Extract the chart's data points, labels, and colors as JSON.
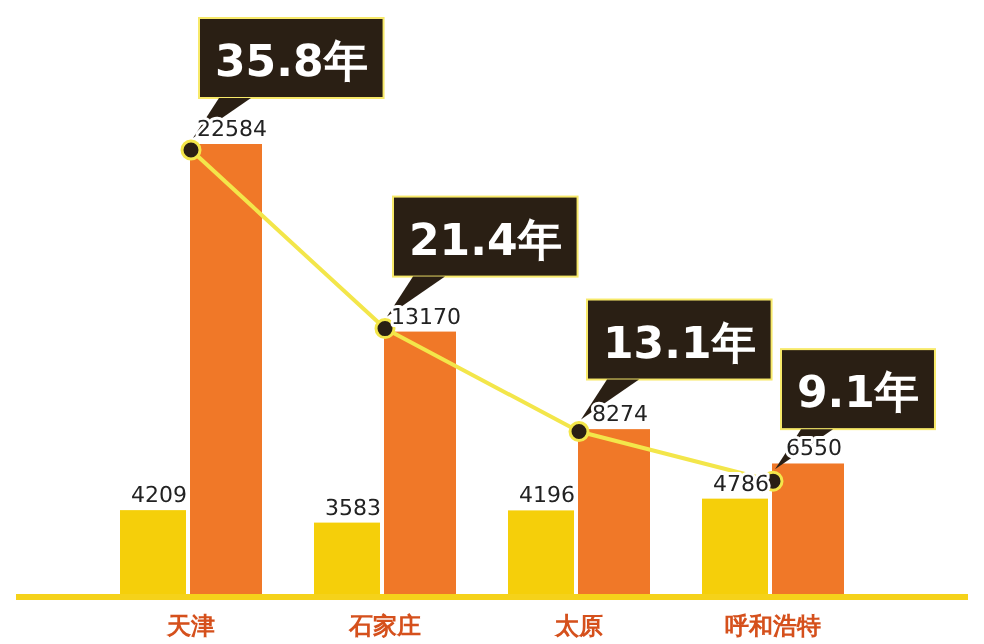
{
  "chart_data": {
    "type": "bar",
    "categories": [
      "天津",
      "石家庄",
      "太原",
      "呼和浩特"
    ],
    "marker": "circle",
    "series": [
      {
        "color": "#f5cf0a",
        "values": [
          4209,
          3583,
          4196,
          4786
        ],
        "value_labels": [
          "4209",
          "3583",
          "4196",
          "4786"
        ]
      },
      {
        "color": "#f07828",
        "values": [
          22584,
          13170,
          8274,
          6550
        ],
        "value_labels": [
          "22584",
          "13170",
          "8274",
          "6550"
        ]
      },
      {
        "type": "line",
        "axis": "y2",
        "color": "#f3e64a",
        "values": [
          35.8,
          21.4,
          13.1,
          9.1
        ],
        "value_labels": [
          "35.8年",
          "21.4年",
          "13.1年",
          "9.1年"
        ]
      }
    ]
  }
}
